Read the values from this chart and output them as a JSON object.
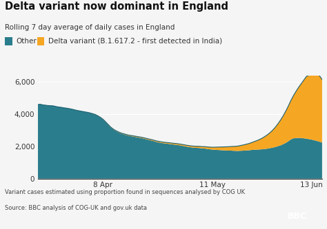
{
  "title": "Delta variant now dominant in England",
  "subtitle": "Rolling 7 day average of daily cases in England",
  "legend_other": "Other",
  "legend_delta": "Delta variant (B.1.617.2 - first detected in India)",
  "color_other": "#2a7d8c",
  "color_delta": "#F5A623",
  "color_other_line": "#1a6070",
  "background_color": "#f5f5f5",
  "footnote1": "Variant cases estimated using proportion found in sequences analysed by COG UK",
  "footnote2": "Source: BBC analysis of COG-UK and gov.uk data",
  "x_tick_labels": [
    "8 Apr",
    "11 May",
    "13 Jun"
  ],
  "x_tick_positions": [
    25,
    67,
    105
  ],
  "ylim": [
    0,
    6400
  ],
  "yticks": [
    0,
    2000,
    4000,
    6000
  ],
  "num_points": 110,
  "other_series": [
    4600,
    4620,
    4580,
    4560,
    4540,
    4530,
    4520,
    4480,
    4450,
    4430,
    4400,
    4380,
    4350,
    4320,
    4280,
    4240,
    4210,
    4180,
    4150,
    4120,
    4080,
    4030,
    3980,
    3900,
    3800,
    3680,
    3520,
    3350,
    3180,
    3050,
    2950,
    2870,
    2800,
    2750,
    2700,
    2660,
    2630,
    2600,
    2570,
    2540,
    2510,
    2470,
    2430,
    2390,
    2350,
    2300,
    2260,
    2230,
    2200,
    2180,
    2160,
    2140,
    2120,
    2100,
    2080,
    2050,
    2020,
    1990,
    1960,
    1940,
    1920,
    1910,
    1900,
    1880,
    1870,
    1840,
    1820,
    1800,
    1790,
    1780,
    1770,
    1760,
    1750,
    1740,
    1740,
    1730,
    1720,
    1720,
    1730,
    1740,
    1750,
    1760,
    1780,
    1790,
    1800,
    1810,
    1820,
    1840,
    1860,
    1890,
    1920,
    1960,
    2010,
    2060,
    2130,
    2210,
    2310,
    2430,
    2500,
    2520,
    2530,
    2520,
    2500,
    2480,
    2450,
    2420,
    2380,
    2340,
    2290,
    2240
  ],
  "delta_series": [
    0,
    0,
    0,
    0,
    0,
    0,
    0,
    0,
    0,
    0,
    0,
    0,
    0,
    0,
    0,
    0,
    0,
    0,
    0,
    0,
    5,
    8,
    10,
    12,
    15,
    18,
    20,
    22,
    25,
    28,
    30,
    32,
    35,
    38,
    40,
    42,
    45,
    48,
    50,
    52,
    54,
    56,
    58,
    60,
    62,
    64,
    66,
    68,
    70,
    72,
    74,
    76,
    78,
    80,
    82,
    84,
    86,
    88,
    90,
    92,
    95,
    100,
    105,
    110,
    120,
    130,
    140,
    150,
    165,
    180,
    195,
    210,
    225,
    240,
    255,
    270,
    290,
    310,
    335,
    360,
    390,
    420,
    460,
    510,
    560,
    620,
    690,
    770,
    860,
    960,
    1080,
    1220,
    1380,
    1560,
    1750,
    1960,
    2180,
    2410,
    2650,
    2900,
    3140,
    3380,
    3620,
    3870,
    3970,
    4050,
    4120,
    4160,
    4100,
    3920
  ]
}
